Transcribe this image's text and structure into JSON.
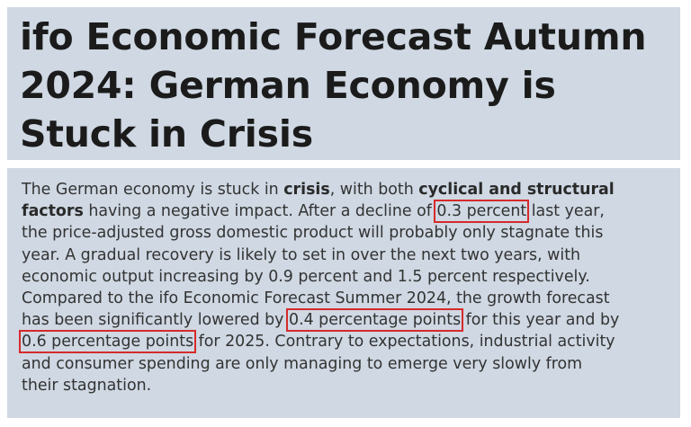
{
  "article": {
    "title_line1": "ifo Economic Forecast Autumn",
    "title_line2": "2024: German Economy is",
    "title_line3": "Stuck in Crisis",
    "l1a": "The German economy is stuck in ",
    "l1_bold1": "crisis",
    "l1b": ", with both ",
    "l1_bold2": "cyclical and structural",
    "l2_bold": "factors",
    "l2a": " having a negative impact. After a decline of ",
    "l2_hl": "0.3 percent",
    "l2b": " last year,",
    "l3": "the price-adjusted gross domestic product will probably only stagnate this",
    "l4": "year. A gradual recovery is likely to set in over the next two years, with",
    "l5": "economic output increasing by 0.9 percent and 1.5 percent respectively.",
    "l6": "Compared to the ifo Economic Forecast Summer 2024, the growth forecast",
    "l7a": "has been significantly lowered by ",
    "l7_hl": "0.4 percentage points",
    "l7b": " for this year and by",
    "l8_hl": "0.6 percentage points",
    "l8b": " for 2025. Contrary to expectations, industrial activity",
    "l9": "and consumer spending are only managing to emerge very slowly from",
    "l10": "their stagnation."
  },
  "colors": {
    "panel_background": "#cfd8e3",
    "highlight_border": "#d62a2a"
  }
}
